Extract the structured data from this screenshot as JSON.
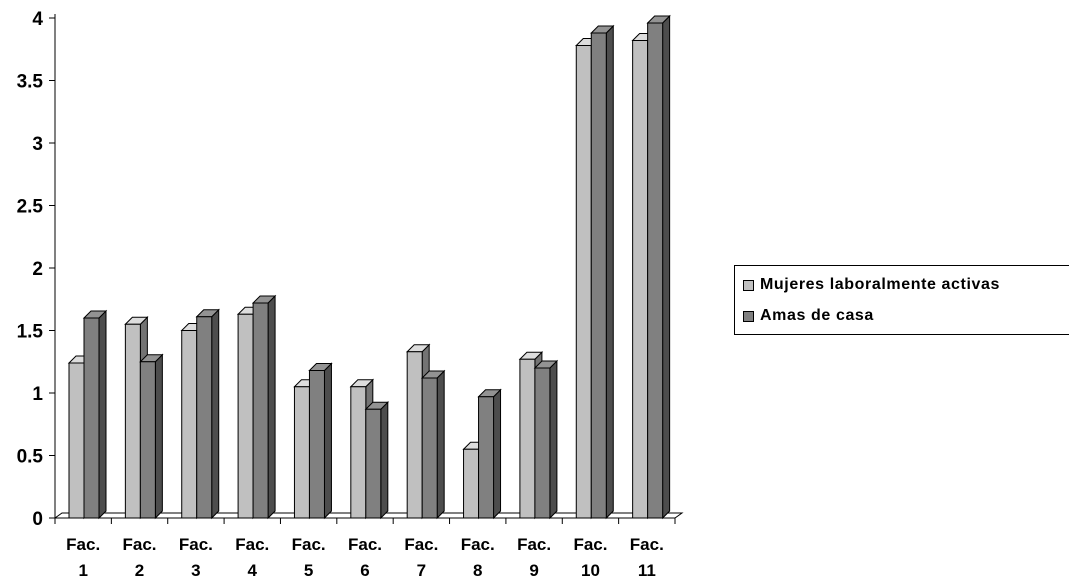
{
  "chart_data": {
    "type": "bar",
    "title": "",
    "xlabel": "",
    "ylabel": "",
    "ylim": [
      0,
      4
    ],
    "yticks": [
      "0",
      "0.5",
      "1",
      "1.5",
      "2",
      "2.5",
      "3",
      "3.5",
      "4"
    ],
    "yticks_values": [
      0,
      0.5,
      1,
      1.5,
      2,
      2.5,
      3,
      3.5,
      4
    ],
    "categories": [
      [
        "Fac.",
        "1"
      ],
      [
        "Fac.",
        "2"
      ],
      [
        "Fac.",
        "3"
      ],
      [
        "Fac.",
        "4"
      ],
      [
        "Fac.",
        "5"
      ],
      [
        "Fac.",
        "6"
      ],
      [
        "Fac.",
        "7"
      ],
      [
        "Fac.",
        "8"
      ],
      [
        "Fac.",
        "9"
      ],
      [
        "Fac.",
        "10"
      ],
      [
        "Fac.",
        "11"
      ]
    ],
    "series": [
      {
        "name": "Mujeres laboralmente activas",
        "color": "#c0c0c0",
        "values": [
          1.24,
          1.55,
          1.5,
          1.63,
          1.05,
          1.05,
          1.33,
          0.55,
          1.27,
          3.78,
          3.82
        ]
      },
      {
        "name": "Amas de casa",
        "color": "#808080",
        "values": [
          1.6,
          1.25,
          1.61,
          1.72,
          1.18,
          0.87,
          1.12,
          0.97,
          1.2,
          3.88,
          3.96
        ]
      }
    ],
    "grid": false,
    "legend_position": "right",
    "style": "3d-clustered-bar"
  },
  "legend": {
    "items": [
      {
        "label": "Mujeres laboralmente activas",
        "color": "#c0c0c0"
      },
      {
        "label": "Amas de casa",
        "color": "#808080"
      }
    ]
  }
}
